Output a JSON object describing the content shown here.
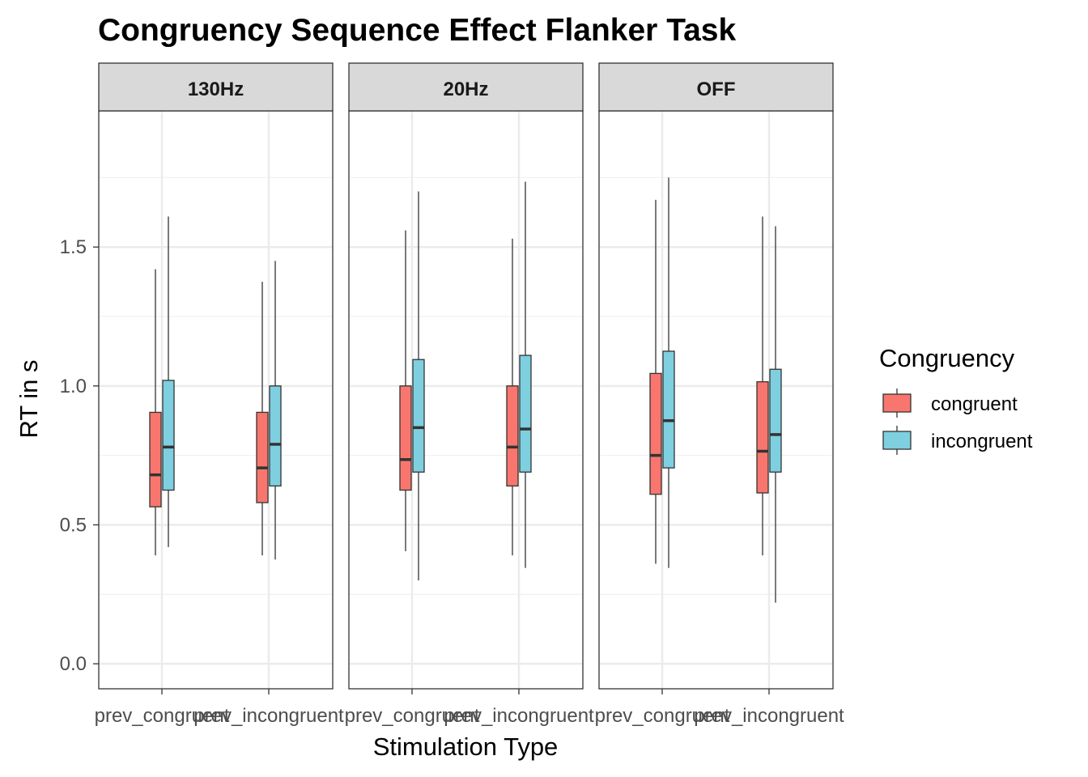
{
  "chart_data": {
    "type": "boxplot",
    "title": "Congruency Sequence Effect Flanker Task",
    "xlabel": "Stimulation Type",
    "ylabel": "RT in s",
    "ylim": [
      -0.09,
      1.99
    ],
    "yticks": [
      0.0,
      0.5,
      1.0,
      1.5
    ],
    "ytick_labels": [
      "0.0",
      "0.5",
      "1.0",
      "1.5"
    ],
    "categories": [
      "prev_congruent",
      "prev_incongruent"
    ],
    "panels": [
      "130Hz",
      "20Hz",
      "OFF"
    ],
    "legend": {
      "title": "Congruency",
      "position": "right",
      "entries": [
        {
          "name": "congruent",
          "color": "#F8766D"
        },
        {
          "name": "incongruent",
          "color": "#7ECFE0"
        }
      ]
    },
    "series": [
      {
        "name": "congruent",
        "color": "#F8766D",
        "boxes": {
          "130Hz": [
            {
              "category": "prev_congruent",
              "min": 0.39,
              "q1": 0.565,
              "median": 0.68,
              "q3": 0.905,
              "max": 1.42
            },
            {
              "category": "prev_incongruent",
              "min": 0.39,
              "q1": 0.58,
              "median": 0.705,
              "q3": 0.905,
              "max": 1.375
            }
          ],
          "20Hz": [
            {
              "category": "prev_congruent",
              "min": 0.405,
              "q1": 0.625,
              "median": 0.735,
              "q3": 1.0,
              "max": 1.56
            },
            {
              "category": "prev_incongruent",
              "min": 0.39,
              "q1": 0.64,
              "median": 0.78,
              "q3": 1.0,
              "max": 1.53
            }
          ],
          "OFF": [
            {
              "category": "prev_congruent",
              "min": 0.36,
              "q1": 0.61,
              "median": 0.75,
              "q3": 1.045,
              "max": 1.67
            },
            {
              "category": "prev_incongruent",
              "min": 0.39,
              "q1": 0.615,
              "median": 0.765,
              "q3": 1.015,
              "max": 1.61
            }
          ]
        }
      },
      {
        "name": "incongruent",
        "color": "#7ECFE0",
        "boxes": {
          "130Hz": [
            {
              "category": "prev_congruent",
              "min": 0.42,
              "q1": 0.625,
              "median": 0.78,
              "q3": 1.02,
              "max": 1.61
            },
            {
              "category": "prev_incongruent",
              "min": 0.375,
              "q1": 0.64,
              "median": 0.79,
              "q3": 1.0,
              "max": 1.45
            }
          ],
          "20Hz": [
            {
              "category": "prev_congruent",
              "min": 0.3,
              "q1": 0.69,
              "median": 0.85,
              "q3": 1.095,
              "max": 1.7
            },
            {
              "category": "prev_incongruent",
              "min": 0.345,
              "q1": 0.69,
              "median": 0.845,
              "q3": 1.11,
              "max": 1.735
            }
          ],
          "OFF": [
            {
              "category": "prev_congruent",
              "min": 0.345,
              "q1": 0.705,
              "median": 0.875,
              "q3": 1.125,
              "max": 1.75
            },
            {
              "category": "prev_incongruent",
              "min": 0.22,
              "q1": 0.69,
              "median": 0.825,
              "q3": 1.06,
              "max": 1.575
            }
          ]
        }
      }
    ]
  }
}
